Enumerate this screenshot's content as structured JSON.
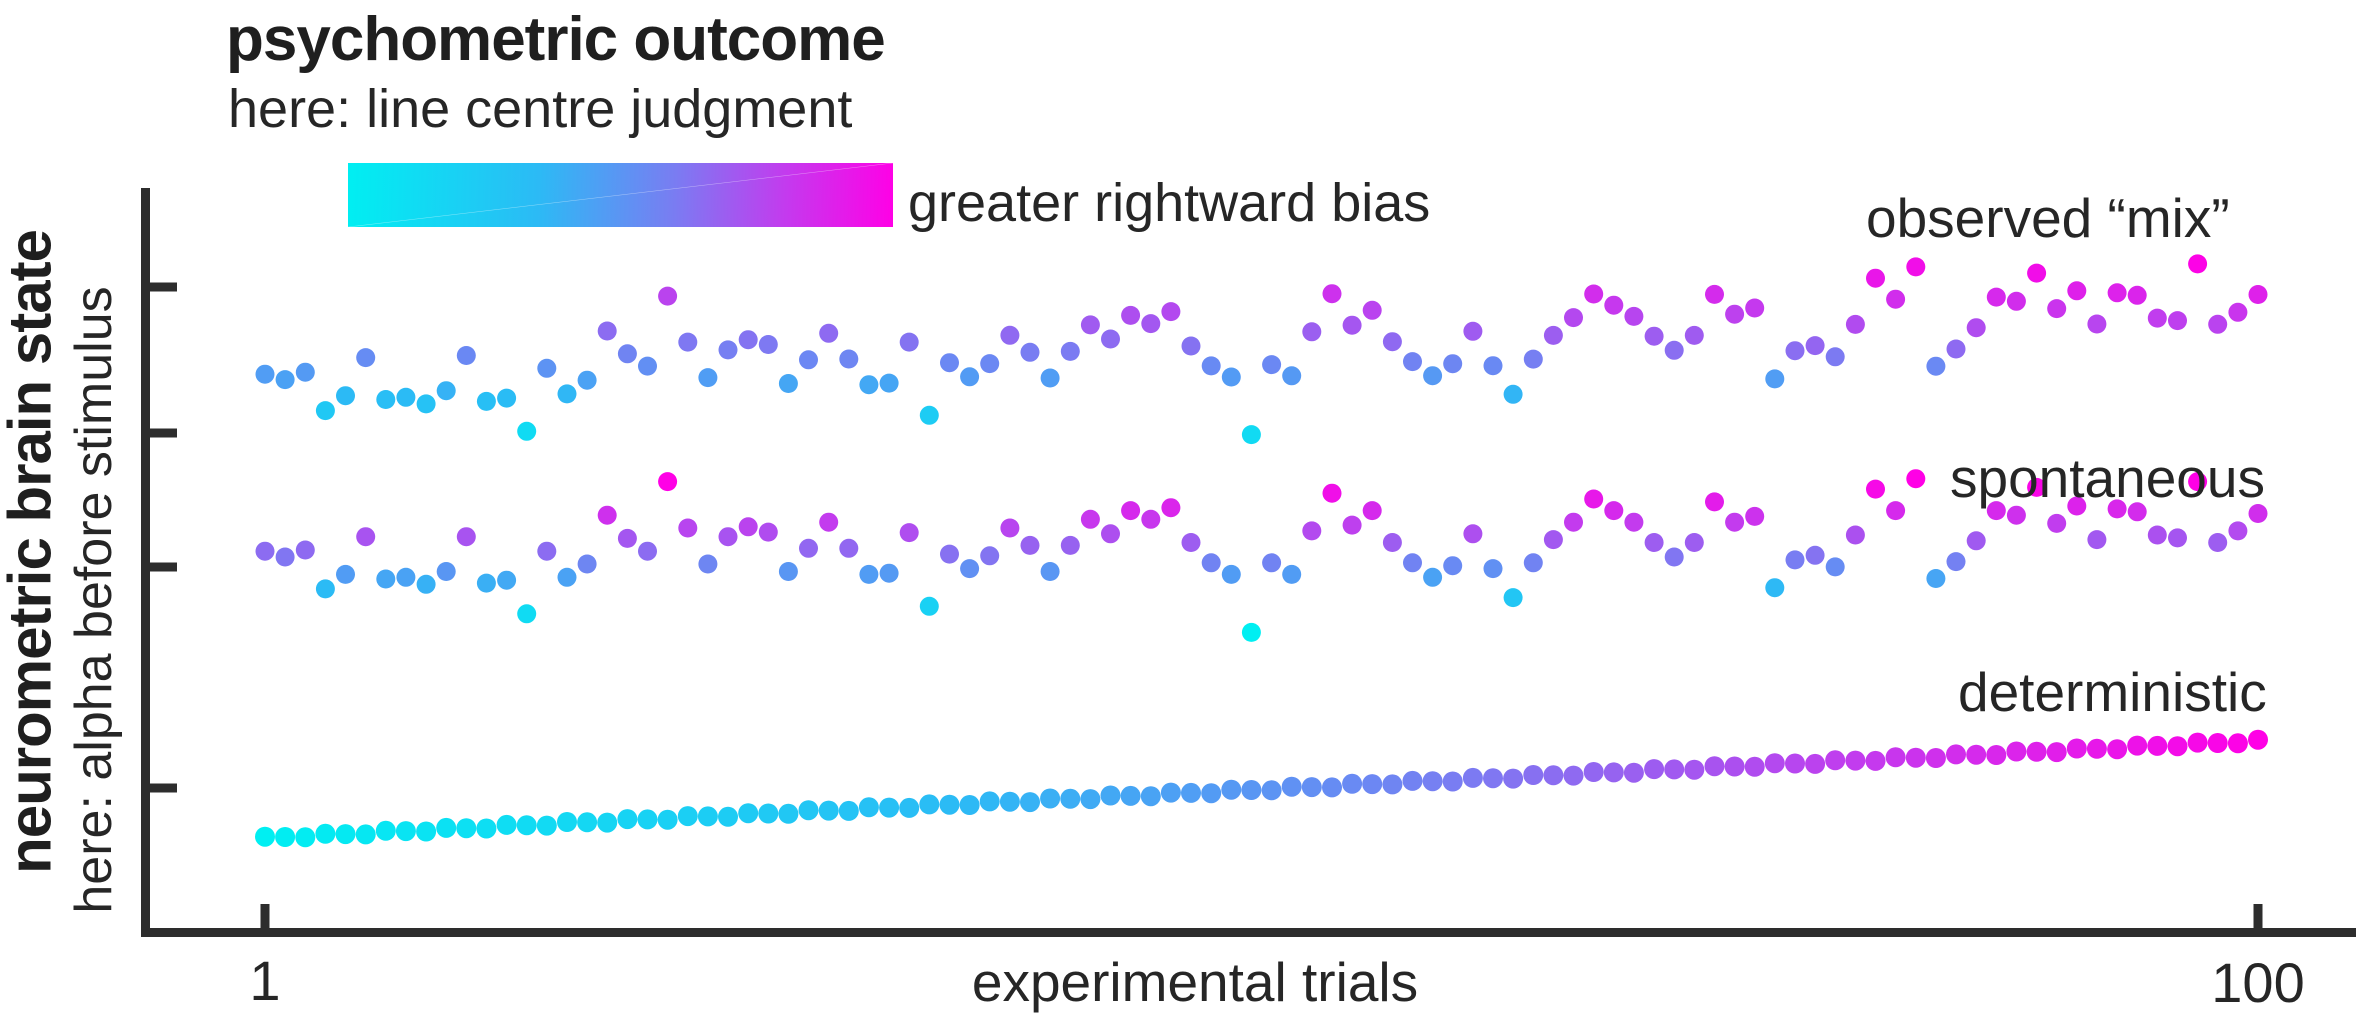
{
  "header": {
    "title": "psychometric outcome",
    "subtitle": "here: line centre judgment"
  },
  "colorbar": {
    "label": "greater rightward bias",
    "gradient_stops": [
      "#00EFF2",
      "#2CBAF5",
      "#7A7CF2",
      "#C33BEE",
      "#FF00E6"
    ],
    "gradient_positions": [
      0,
      0.35,
      0.6,
      0.8,
      1
    ]
  },
  "axes": {
    "y_title": "neurometric brain state",
    "y_subtitle": "here: alpha before stimulus",
    "x_title": "experimental trials",
    "x_tick_labels": [
      "1",
      "100"
    ],
    "axis_color": "#2d2d2d",
    "y_ticks_unlabeled_count": 4
  },
  "series_labels": {
    "observed": "observed “mix”",
    "spontaneous": "spontaneous",
    "deterministic": "deterministic"
  },
  "chart_data": {
    "type": "scatter",
    "title": "psychometric outcome — here: line centre judgment",
    "xlabel": "experimental trials",
    "ylabel": "neurometric brain state — here: alpha before stimulus",
    "x_range": [
      1,
      100
    ],
    "x_ticks": [
      1,
      100
    ],
    "n_trials": 100,
    "grid": false,
    "colormap": {
      "low": "#00EFF2",
      "high": "#FF00E6",
      "meaning": "greater rightward bias (cyan = leftward, magenta = rightward)"
    },
    "series": [
      {
        "name": "observed “mix”",
        "band": "top",
        "y_model": "slowly rising band + shared trial-to-trial fluctuation",
        "color_rule": "blend of trial index gradient and fluctuation amplitude"
      },
      {
        "name": "spontaneous",
        "band": "middle",
        "y_model": "flat band + shared trial-to-trial fluctuation",
        "color_rule": "amplitude only (higher = more magenta)"
      },
      {
        "name": "deterministic",
        "band": "bottom",
        "y_model": "smooth shallow linear rise across trials",
        "color_rule": "trial index only (cyan → magenta left to right)"
      }
    ],
    "shared_fluctuation": [
      0.1,
      0.0,
      0.12,
      -0.55,
      -0.3,
      0.35,
      -0.38,
      -0.35,
      -0.47,
      -0.25,
      0.35,
      -0.45,
      -0.4,
      -0.98,
      0.1,
      -0.35,
      -0.12,
      0.72,
      0.32,
      0.1,
      1.3,
      0.5,
      -0.12,
      0.35,
      0.52,
      0.43,
      -0.25,
      0.15,
      0.6,
      0.15,
      -0.3,
      -0.28,
      0.42,
      -0.85,
      0.05,
      -0.2,
      0.02,
      0.5,
      0.2,
      -0.25,
      0.2,
      0.65,
      0.4,
      0.8,
      0.65,
      0.85,
      0.25,
      -0.1,
      -0.3,
      -1.3,
      -0.1,
      -0.3,
      0.45,
      1.1,
      0.55,
      0.8,
      0.25,
      -0.1,
      -0.35,
      -0.15,
      0.4,
      -0.2,
      -0.7,
      -0.1,
      0.3,
      0.6,
      1.0,
      0.8,
      0.6,
      0.25,
      0.0,
      0.25,
      0.95,
      0.6,
      0.7,
      -0.53,
      -0.05,
      0.03,
      -0.17,
      0.38,
      1.17,
      0.8,
      1.35,
      -0.37,
      -0.08,
      0.28,
      0.8,
      0.72,
      1.2,
      0.58,
      0.88,
      0.3,
      0.83,
      0.78,
      0.38,
      0.33,
      1.3,
      0.25,
      0.45,
      0.75
    ]
  }
}
